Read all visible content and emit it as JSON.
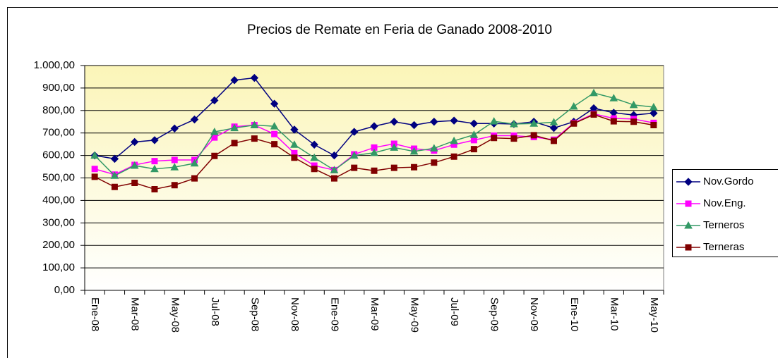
{
  "chart_data": {
    "type": "line",
    "title": "Precios de Remate en Feria de Ganado 2008-2010",
    "categories": [
      "Ene-08",
      null,
      "Mar-08",
      null,
      "May-08",
      null,
      "Jul-08",
      null,
      "Sep-08",
      null,
      "Nov-08",
      null,
      "Ene-09",
      null,
      "Mar-09",
      null,
      "May-09",
      null,
      "Jul-09",
      null,
      "Sep-09",
      null,
      "Nov-09",
      null,
      "Ene-10",
      null,
      "Mar-10",
      null,
      "May-10"
    ],
    "series": [
      {
        "name": "Nov.Gordo",
        "color": "#000080",
        "marker": "diamond",
        "values": [
          600,
          585,
          660,
          668,
          720,
          760,
          845,
          935,
          945,
          830,
          715,
          648,
          600,
          705,
          730,
          750,
          735,
          750,
          755,
          742,
          742,
          740,
          750,
          722,
          750,
          810,
          790,
          780,
          788
        ]
      },
      {
        "name": "Nov.Eng.",
        "color": "#ff00ff",
        "marker": "square",
        "values": [
          540,
          515,
          558,
          575,
          580,
          580,
          680,
          728,
          735,
          695,
          610,
          555,
          535,
          605,
          635,
          652,
          630,
          622,
          648,
          668,
          688,
          688,
          682,
          670,
          745,
          785,
          765,
          762,
          745
        ]
      },
      {
        "name": "Terneros",
        "color": "#339966",
        "marker": "triangle",
        "values": [
          600,
          510,
          555,
          540,
          548,
          565,
          705,
          722,
          735,
          730,
          648,
          590,
          535,
          600,
          612,
          635,
          618,
          632,
          665,
          692,
          752,
          740,
          742,
          748,
          818,
          878,
          855,
          825,
          815
        ]
      },
      {
        "name": "Terneras",
        "color": "#800000",
        "marker": "square",
        "values": [
          505,
          460,
          478,
          450,
          468,
          498,
          598,
          655,
          675,
          650,
          590,
          540,
          498,
          545,
          532,
          545,
          548,
          568,
          595,
          628,
          678,
          675,
          690,
          665,
          742,
          782,
          752,
          750,
          735
        ]
      }
    ],
    "ylim": [
      0,
      1000
    ],
    "yticks": [
      {
        "value": 0,
        "label": "0,00"
      },
      {
        "value": 100,
        "label": "100,00"
      },
      {
        "value": 200,
        "label": "200,00"
      },
      {
        "value": 300,
        "label": "300,00"
      },
      {
        "value": 400,
        "label": "400,00"
      },
      {
        "value": 500,
        "label": "500,00"
      },
      {
        "value": 600,
        "label": "600,00"
      },
      {
        "value": 700,
        "label": "700,00"
      },
      {
        "value": 800,
        "label": "800,00"
      },
      {
        "value": 900,
        "label": "900,00"
      },
      {
        "value": 1000,
        "label": "1.000,00"
      }
    ],
    "grid": true,
    "legend": "right"
  }
}
